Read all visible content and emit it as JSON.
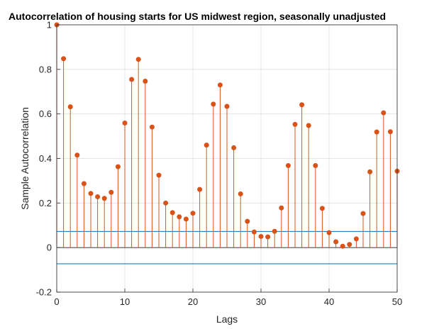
{
  "colors": {
    "stem": "#d95319",
    "bound": "#0072bd",
    "baseline": "#262626",
    "grid": "#dfdfdf",
    "axis": "#262626"
  },
  "chart_data": {
    "type": "stem",
    "title": "Autocorrelation of housing starts for US midwest region, seasonally unadjusted",
    "xlabel": "Lags",
    "ylabel": "Sample Autocorrelation",
    "xlim": [
      0,
      50
    ],
    "ylim": [
      -0.2,
      1
    ],
    "xticks": [
      "0",
      "10",
      "20",
      "30",
      "40",
      "50"
    ],
    "yticks": [
      "-0.2",
      "0",
      "0.2",
      "0.4",
      "0.6",
      "0.8",
      "1"
    ],
    "grid": true,
    "lags": [
      0,
      1,
      2,
      3,
      4,
      5,
      6,
      7,
      8,
      9,
      10,
      11,
      12,
      13,
      14,
      15,
      16,
      17,
      18,
      19,
      20,
      21,
      22,
      23,
      24,
      25,
      26,
      27,
      28,
      29,
      30,
      31,
      32,
      33,
      34,
      35,
      36,
      37,
      38,
      39,
      40,
      41,
      42,
      43,
      44,
      45,
      46,
      47,
      48,
      49,
      50
    ],
    "values": [
      1.0,
      0.848,
      0.632,
      0.415,
      0.287,
      0.243,
      0.228,
      0.221,
      0.248,
      0.363,
      0.559,
      0.755,
      0.845,
      0.747,
      0.541,
      0.325,
      0.2,
      0.157,
      0.138,
      0.128,
      0.154,
      0.261,
      0.46,
      0.644,
      0.73,
      0.634,
      0.448,
      0.241,
      0.118,
      0.07,
      0.05,
      0.048,
      0.073,
      0.178,
      0.368,
      0.553,
      0.641,
      0.548,
      0.368,
      0.176,
      0.067,
      0.026,
      0.006,
      0.014,
      0.039,
      0.153,
      0.34,
      0.519,
      0.605,
      0.52,
      0.343
    ],
    "confidence_bounds": [
      0.0725,
      -0.0725
    ]
  }
}
